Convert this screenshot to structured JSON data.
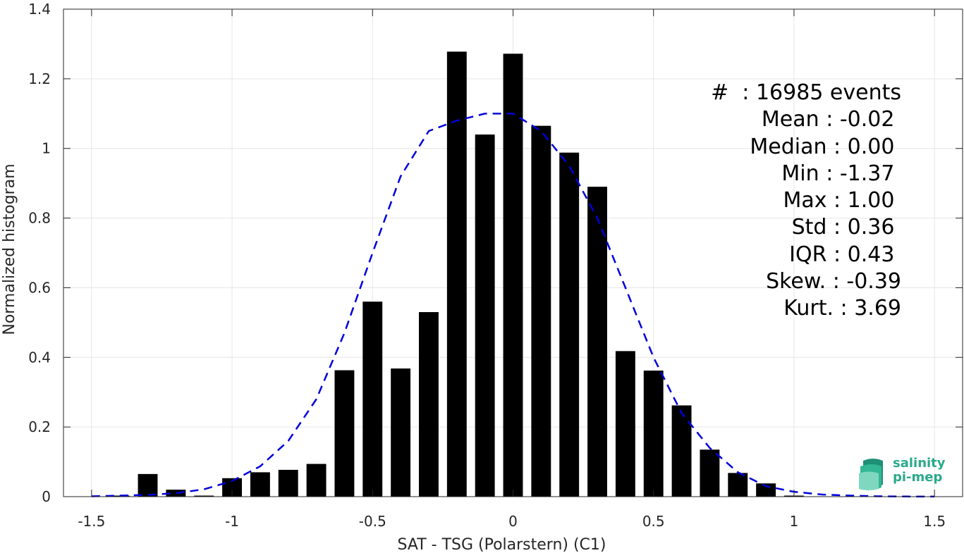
{
  "chart_data": {
    "type": "bar",
    "xlabel": "SAT - TSG (Polarstern) (C1)",
    "ylabel": "Normalized histogram",
    "xlim": [
      -1.6,
      1.6
    ],
    "ylim": [
      0,
      1.4
    ],
    "xticks": [
      "-1.5",
      "-1",
      "-0.5",
      "0",
      "0.5",
      "1",
      "1.5"
    ],
    "yticks": [
      "0",
      "0.2",
      "0.4",
      "0.6",
      "0.8",
      "1",
      "1.2",
      "1.4"
    ],
    "grid": true,
    "bar_width": 0.07,
    "bars": [
      {
        "x": -1.4,
        "y": 0.003
      },
      {
        "x": -1.3,
        "y": 0.065
      },
      {
        "x": -1.2,
        "y": 0.02
      },
      {
        "x": -1.1,
        "y": 0.003
      },
      {
        "x": -1.0,
        "y": 0.053
      },
      {
        "x": -0.9,
        "y": 0.07
      },
      {
        "x": -0.8,
        "y": 0.077
      },
      {
        "x": -0.7,
        "y": 0.094
      },
      {
        "x": -0.6,
        "y": 0.363
      },
      {
        "x": -0.5,
        "y": 0.56
      },
      {
        "x": -0.4,
        "y": 0.368
      },
      {
        "x": -0.3,
        "y": 0.53
      },
      {
        "x": -0.2,
        "y": 1.278
      },
      {
        "x": -0.1,
        "y": 1.04
      },
      {
        "x": 0.0,
        "y": 1.272
      },
      {
        "x": 0.1,
        "y": 1.065
      },
      {
        "x": 0.2,
        "y": 0.988
      },
      {
        "x": 0.3,
        "y": 0.89
      },
      {
        "x": 0.4,
        "y": 0.418
      },
      {
        "x": 0.5,
        "y": 0.362
      },
      {
        "x": 0.6,
        "y": 0.262
      },
      {
        "x": 0.7,
        "y": 0.135
      },
      {
        "x": 0.8,
        "y": 0.068
      },
      {
        "x": 0.9,
        "y": 0.038
      },
      {
        "x": 1.0,
        "y": 0.003
      }
    ],
    "fit_curve": {
      "style": "dashed",
      "color": "#0000dd",
      "x": [
        -1.5,
        -1.4,
        -1.3,
        -1.2,
        -1.1,
        -1.0,
        -0.9,
        -0.8,
        -0.7,
        -0.6,
        -0.5,
        -0.4,
        -0.3,
        -0.2,
        -0.1,
        0.0,
        0.1,
        0.2,
        0.3,
        0.4,
        0.5,
        0.6,
        0.7,
        0.8,
        0.9,
        1.0,
        1.1,
        1.2,
        1.3,
        1.4,
        1.5
      ],
      "y": [
        0.001,
        0.003,
        0.005,
        0.01,
        0.021,
        0.045,
        0.087,
        0.16,
        0.28,
        0.47,
        0.7,
        0.92,
        1.05,
        1.08,
        1.1,
        1.1,
        1.05,
        0.95,
        0.8,
        0.6,
        0.4,
        0.24,
        0.14,
        0.07,
        0.03,
        0.014,
        0.006,
        0.003,
        0.001,
        0.0005,
        0.0002
      ]
    }
  },
  "stats": [
    "#  : 16985 events",
    "Mean : -0.02 ",
    "Median : 0.00 ",
    "Min : -1.37 ",
    "Max : 1.00 ",
    "Std : 0.36 ",
    "IQR : 0.43 ",
    "Skew. : -0.39",
    "Kurt. : 3.69"
  ],
  "logo": {
    "line1": "salinity",
    "line2": "pi-mep",
    "color": "#2aa98a"
  }
}
